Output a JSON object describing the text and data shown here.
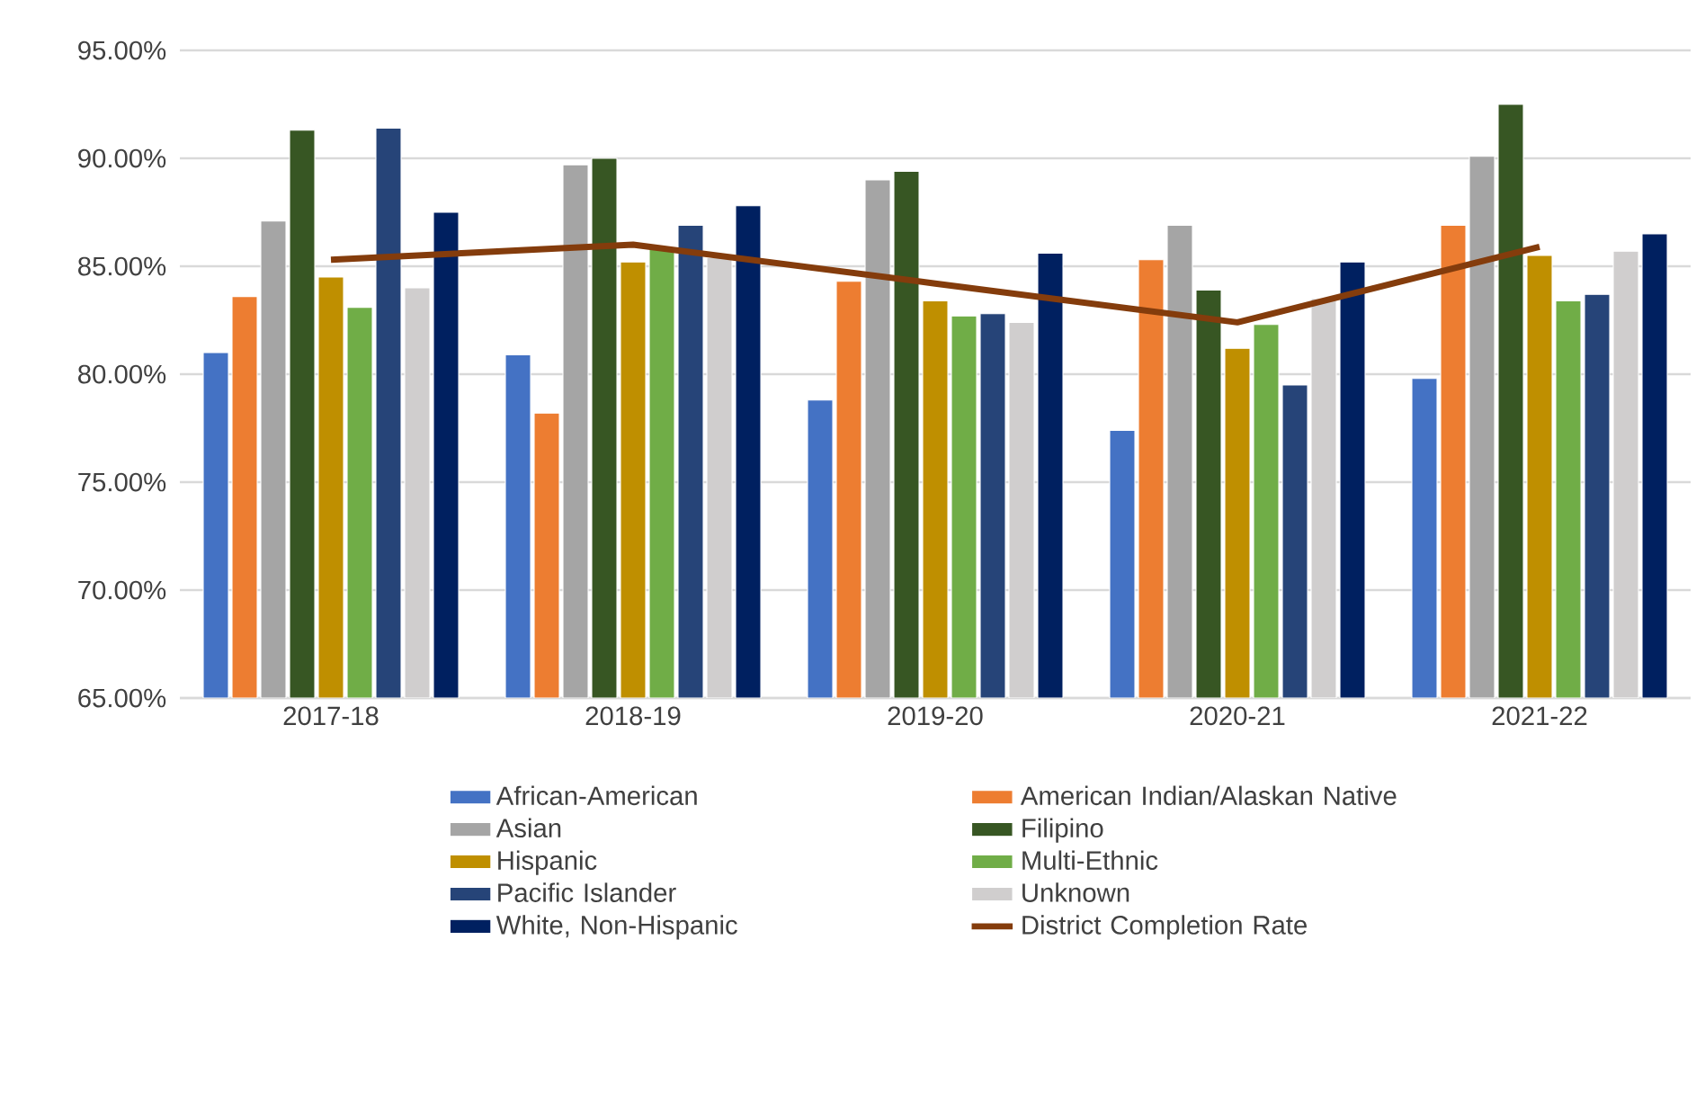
{
  "chart_data": {
    "type": "bar",
    "categories": [
      "2017-18",
      "2018-19",
      "2019-20",
      "2020-21",
      "2021-22"
    ],
    "series": [
      {
        "name": "African-American",
        "color": "#4472c4",
        "values": [
          81.0,
          80.9,
          78.8,
          77.4,
          79.8
        ]
      },
      {
        "name": "American Indian/Alaskan Native",
        "color": "#ed7d31",
        "values": [
          83.6,
          78.2,
          84.3,
          85.3,
          86.9
        ]
      },
      {
        "name": "Asian",
        "color": "#a5a5a5",
        "values": [
          87.1,
          89.7,
          89.0,
          86.9,
          90.1
        ]
      },
      {
        "name": "Filipino",
        "color": "#375623",
        "values": [
          91.3,
          90.0,
          89.4,
          83.9,
          92.5
        ]
      },
      {
        "name": "Hispanic",
        "color": "#bf8f00",
        "values": [
          84.5,
          85.2,
          83.4,
          81.2,
          85.5
        ]
      },
      {
        "name": "Multi-Ethnic",
        "color": "#70ad47",
        "values": [
          83.1,
          85.9,
          82.7,
          82.3,
          83.4
        ]
      },
      {
        "name": "Pacific Islander",
        "color": "#264478",
        "values": [
          91.4,
          86.9,
          82.8,
          79.5,
          83.7
        ]
      },
      {
        "name": "Unknown",
        "color": "#d0cece",
        "values": [
          84.0,
          85.4,
          82.4,
          83.5,
          85.7
        ]
      },
      {
        "name": "White, Non-Hispanic",
        "color": "#002060",
        "values": [
          87.5,
          87.8,
          85.6,
          85.2,
          86.5
        ]
      },
      {
        "name": "District Completion Rate",
        "type": "line",
        "color": "#843c0c",
        "values": [
          85.3,
          86.0,
          84.2,
          82.4,
          85.9
        ]
      }
    ],
    "ylim": [
      65,
      95
    ],
    "yticks": [
      {
        "value": 65,
        "label": "65.00%"
      },
      {
        "value": 70,
        "label": "70.00%"
      },
      {
        "value": 75,
        "label": "75.00%"
      },
      {
        "value": 80,
        "label": "80.00%"
      },
      {
        "value": 85,
        "label": "85.00%"
      },
      {
        "value": 90,
        "label": "90.00%"
      },
      {
        "value": 95,
        "label": "95.00%"
      }
    ],
    "grid": "y",
    "legend": "bottom"
  }
}
